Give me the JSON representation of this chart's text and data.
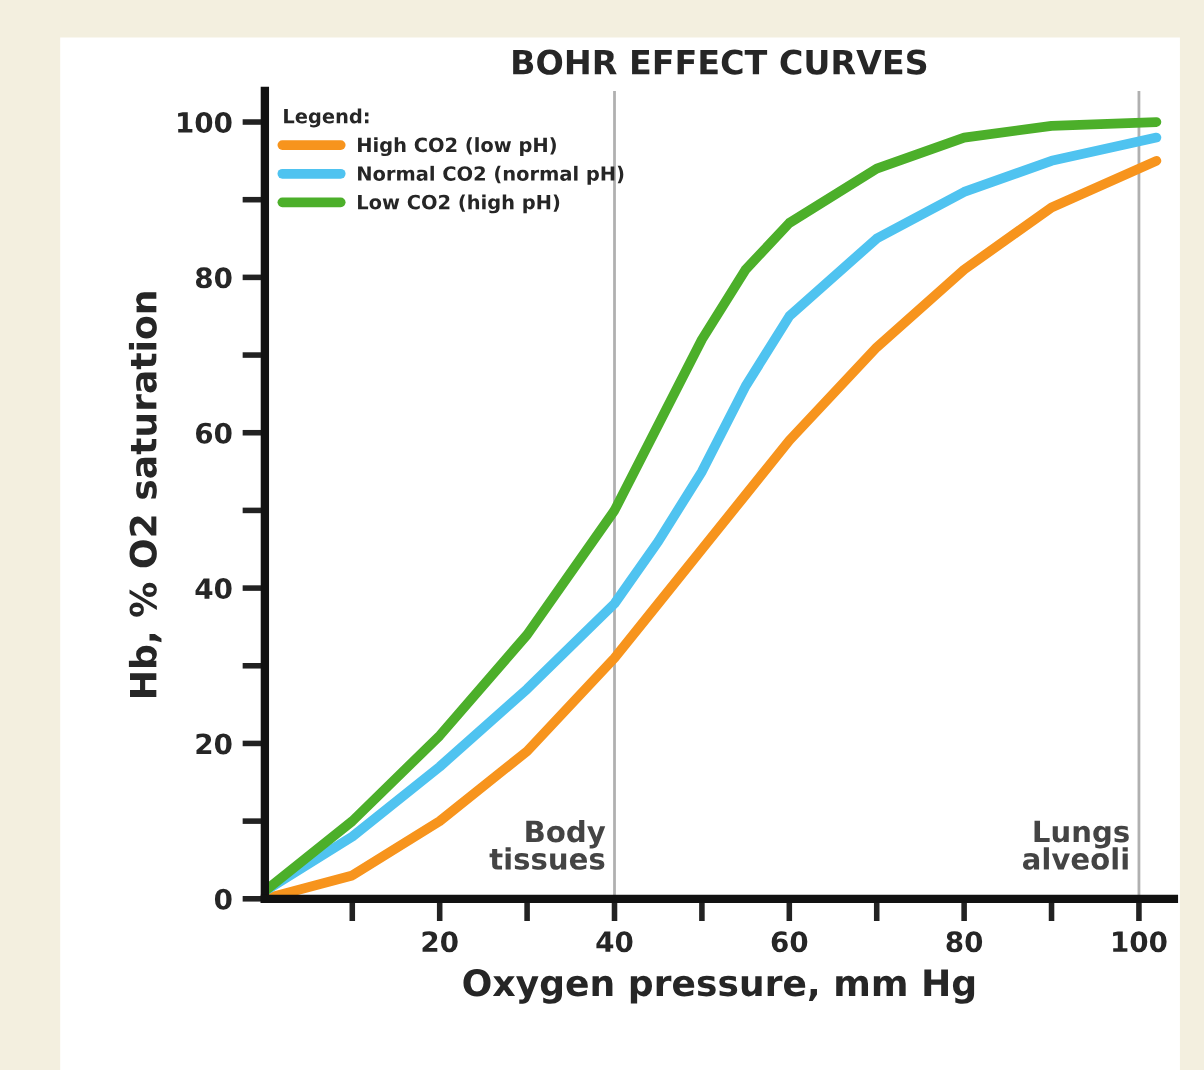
{
  "chart_data": {
    "type": "line",
    "title": "BOHR EFFECT CURVES",
    "xlabel": "Oxygen pressure, mm Hg",
    "ylabel": "Hb, % O2 saturation",
    "legend_title": "Legend:",
    "legend": "top left",
    "grid": false,
    "marker": "none",
    "line_style": "solid",
    "x": [
      0,
      10,
      20,
      30,
      40,
      45,
      50,
      55,
      60,
      70,
      80,
      90,
      102
    ],
    "series": [
      {
        "name": "High CO2 (low pH)",
        "color": "#f7941d",
        "values": [
          0,
          3,
          10,
          19,
          31,
          38,
          45,
          52,
          59,
          71,
          81,
          89,
          95
        ]
      },
      {
        "name": "Normal CO2 (normal pH)",
        "color": "#4fc3f0",
        "values": [
          1,
          8,
          17,
          27,
          38,
          46,
          55,
          66,
          75,
          85,
          91,
          95,
          98
        ]
      },
      {
        "name": "Low CO2 (high pH)",
        "color": "#4caf2a",
        "values": [
          1,
          10,
          21,
          34,
          50,
          61,
          72,
          81,
          87,
          94,
          98,
          99.5,
          100
        ]
      }
    ],
    "xlim": [
      0,
      104
    ],
    "ylim": [
      0,
      104
    ],
    "xticks": [
      {
        "value": 10,
        "label": null
      },
      20,
      {
        "value": 30,
        "label": null
      },
      40,
      {
        "value": 50,
        "label": null
      },
      60,
      {
        "value": 70,
        "label": null
      },
      80,
      {
        "value": 90,
        "label": null
      },
      100
    ],
    "yticks": [
      0,
      {
        "value": 10,
        "label": null
      },
      20,
      {
        "value": 30,
        "label": null
      },
      40,
      {
        "value": 50,
        "label": null
      },
      60,
      {
        "value": 70,
        "label": null
      },
      80,
      {
        "value": 90,
        "label": null
      },
      100
    ],
    "ref_lines": [
      {
        "axis": "x",
        "value": 40,
        "label": "Body\ntissues",
        "color": "#b0b0b0"
      },
      {
        "axis": "x",
        "value": 100,
        "label": "Lungs\nalveoli",
        "color": "#b0b0b0"
      }
    ]
  }
}
